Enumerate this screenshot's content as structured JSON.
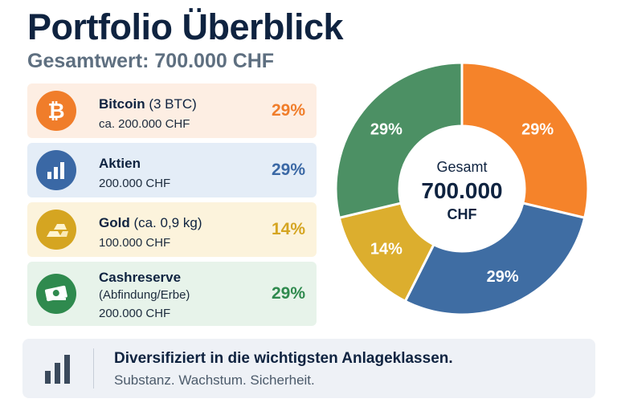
{
  "header": {
    "title": "Portfolio Überblick",
    "subtitle": "Gesamtwert: 700.000 CHF"
  },
  "assets": [
    {
      "name": "Bitcoin",
      "name_extra": " (3 BTC)",
      "line2": "ca. 200.000 CHF",
      "line3": "",
      "pct_label": "29%",
      "icon": "bitcoin-icon",
      "color": "#f07d2a",
      "bg": "#fdeee3"
    },
    {
      "name": "Aktien",
      "name_extra": "",
      "line2": "200.000 CHF",
      "line3": "",
      "pct_label": "29%",
      "icon": "bar-chart-icon",
      "color": "#3a68a5",
      "bg": "#e4edf7"
    },
    {
      "name": "Gold",
      "name_extra": " (ca. 0,9 kg)",
      "line2": "100.000 CHF",
      "line3": "",
      "pct_label": "14%",
      "icon": "gold-bars-icon",
      "color": "#d5a521",
      "bg": "#fcf3dc"
    },
    {
      "name": "Cashreserve",
      "name_extra": "",
      "line2": "(Abfindung/Erbe)",
      "line3": "200.000 CHF",
      "pct_label": "29%",
      "icon": "cash-icon",
      "color": "#2f8a4e",
      "bg": "#e7f3ea"
    }
  ],
  "chart_data": {
    "type": "pie",
    "center_label": {
      "line1": "Gesamt",
      "line2": "700.000",
      "line3": "CHF"
    },
    "slices": [
      {
        "name": "Bitcoin",
        "value": 29,
        "label": "29%",
        "color": "#f5832a"
      },
      {
        "name": "Aktien",
        "value": 29,
        "label": "29%",
        "color": "#3f6da3"
      },
      {
        "name": "Gold",
        "value": 14,
        "label": "14%",
        "color": "#dcae2e"
      },
      {
        "name": "Cashreserve",
        "value": 29,
        "label": "29%",
        "color": "#4c9064"
      }
    ],
    "start_angle_deg": 0,
    "direction": "clockwise"
  },
  "footer": {
    "headline": "Diversifiziert in die wichtigsten Anlageklassen.",
    "subline": "Substanz. Wachstum. Sicherheit.",
    "icon": "bar-chart-icon",
    "icon_color": "#3b4a5c"
  }
}
